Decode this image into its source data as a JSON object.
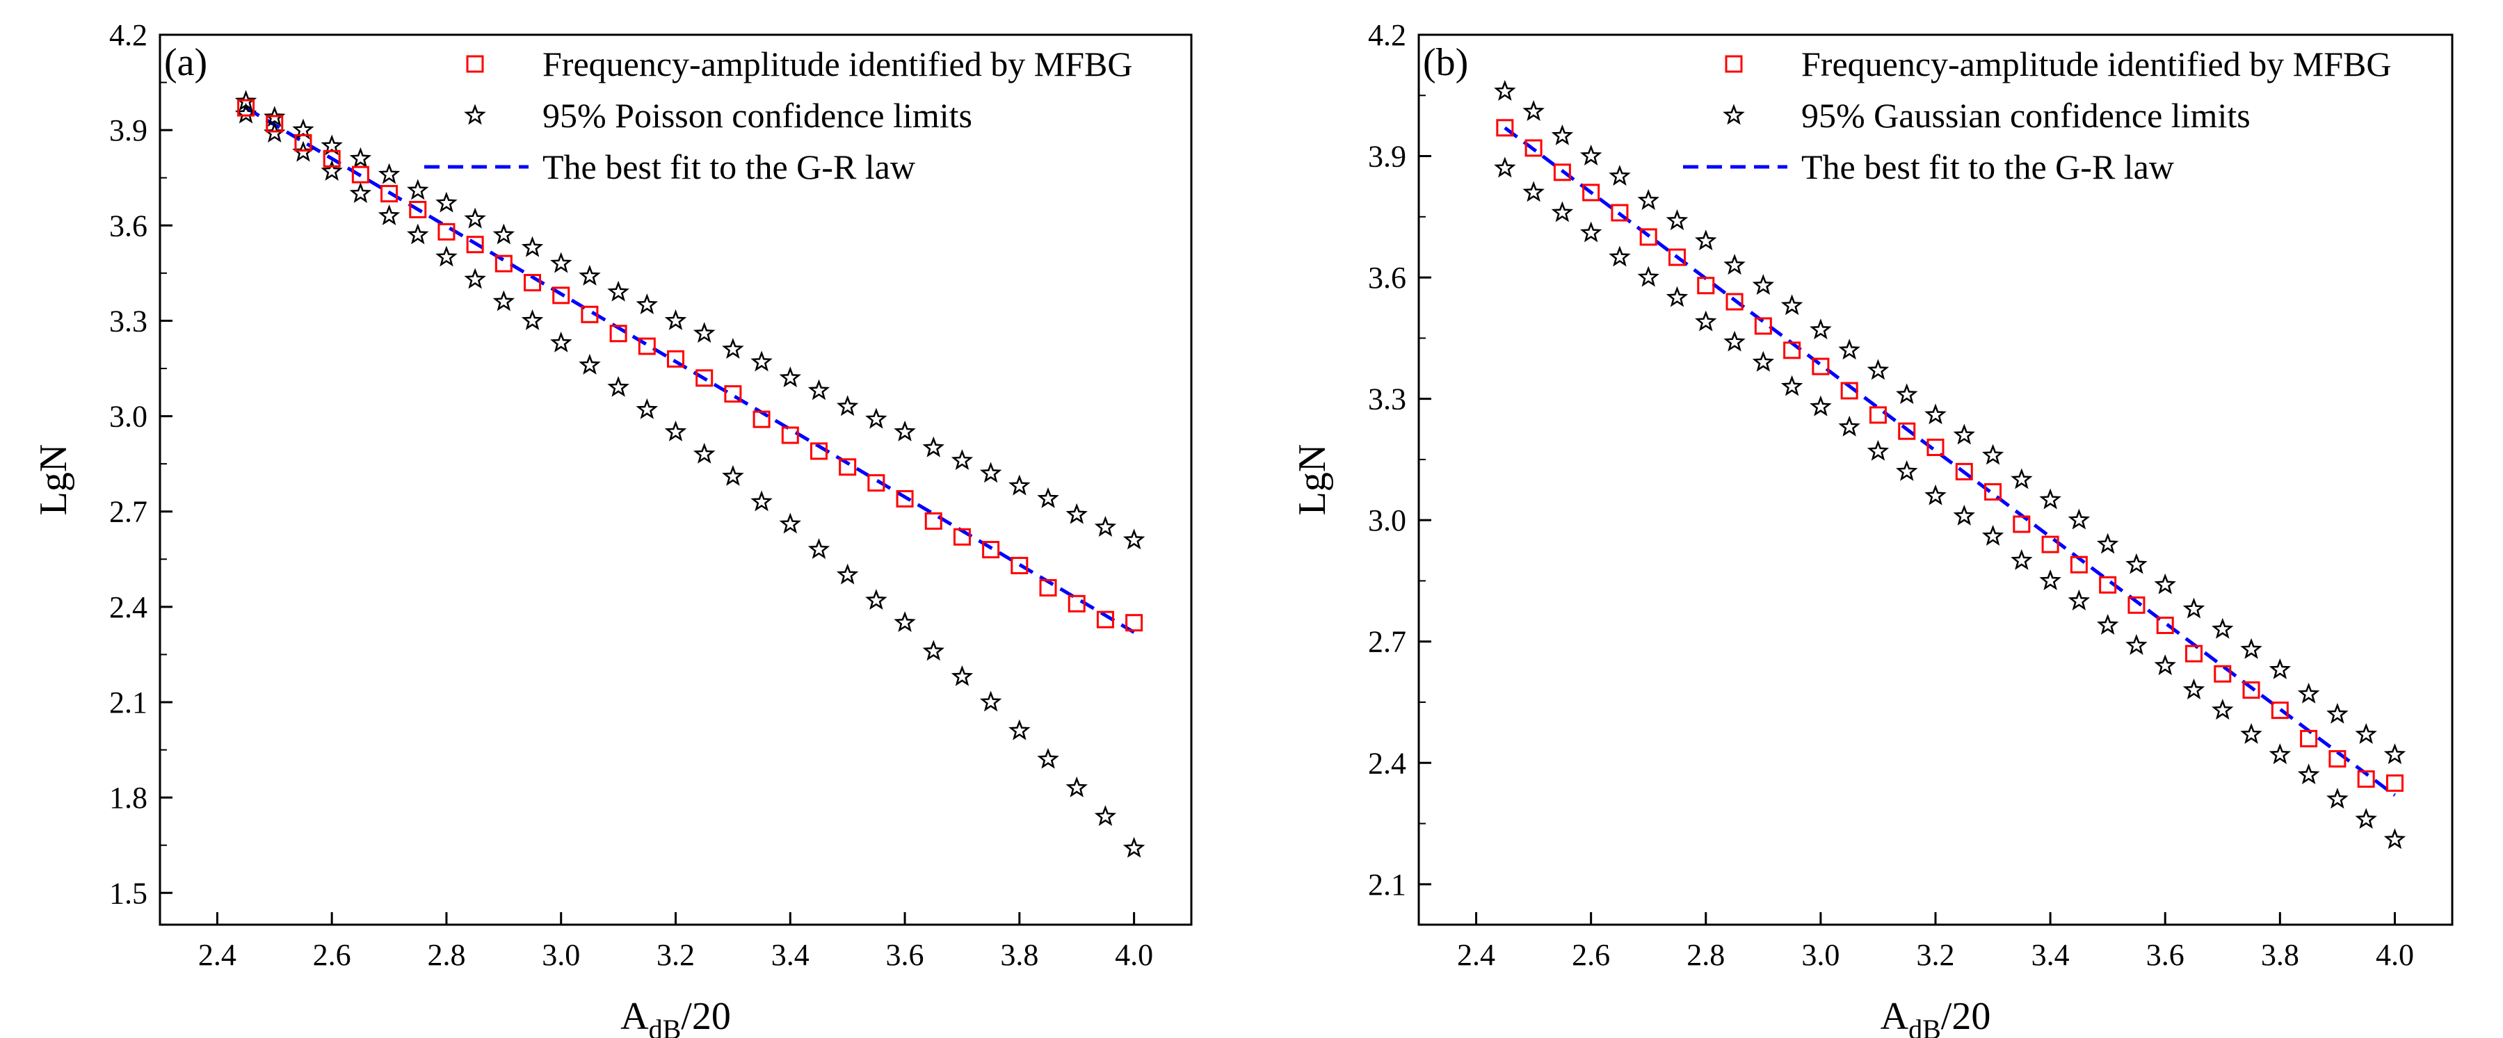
{
  "figure": {
    "panels": [
      "(a)",
      "(b)"
    ]
  },
  "chart_data": [
    {
      "type": "scatter",
      "panel_label": "(a)",
      "xlabel": {
        "main": "A",
        "sub": "dB",
        "tail": "/20"
      },
      "ylabel": "LgN",
      "xlim": [
        2.3,
        4.1
      ],
      "ylim": [
        1.4,
        4.2
      ],
      "xticks": [
        "2.4",
        "2.6",
        "2.8",
        "3.0",
        "3.2",
        "3.4",
        "3.6",
        "3.8",
        "4.0"
      ],
      "yticks": [
        "1.5",
        "1.8",
        "2.1",
        "2.4",
        "2.7",
        "3.0",
        "3.3",
        "3.6",
        "3.9",
        "4.2"
      ],
      "grid": false,
      "legend_position": "top-right",
      "x": [
        2.45,
        2.5,
        2.55,
        2.6,
        2.65,
        2.7,
        2.75,
        2.8,
        2.85,
        2.9,
        2.95,
        3.0,
        3.05,
        3.1,
        3.15,
        3.2,
        3.25,
        3.3,
        3.35,
        3.4,
        3.45,
        3.5,
        3.55,
        3.6,
        3.65,
        3.7,
        3.75,
        3.8,
        3.85,
        3.9,
        3.95,
        4.0
      ],
      "series": [
        {
          "name": "Frequency-amplitude identified by MFBG",
          "marker": "square",
          "color": "#ff0000",
          "values": [
            3.97,
            3.92,
            3.86,
            3.81,
            3.76,
            3.7,
            3.65,
            3.58,
            3.54,
            3.48,
            3.42,
            3.38,
            3.32,
            3.26,
            3.22,
            3.18,
            3.12,
            3.07,
            2.99,
            2.94,
            2.89,
            2.84,
            2.79,
            2.74,
            2.67,
            2.62,
            2.58,
            2.53,
            2.46,
            2.41,
            2.36,
            2.35
          ]
        },
        {
          "name": "95% Poisson confidence limits",
          "marker": "star",
          "color": "#000000",
          "values_upper": [
            3.99,
            3.94,
            3.9,
            3.85,
            3.81,
            3.76,
            3.71,
            3.67,
            3.62,
            3.57,
            3.53,
            3.48,
            3.44,
            3.39,
            3.35,
            3.3,
            3.26,
            3.21,
            3.17,
            3.12,
            3.08,
            3.03,
            2.99,
            2.95,
            2.9,
            2.86,
            2.82,
            2.78,
            2.74,
            2.69,
            2.65,
            2.61
          ],
          "values_lower": [
            3.95,
            3.89,
            3.83,
            3.77,
            3.7,
            3.63,
            3.57,
            3.5,
            3.43,
            3.36,
            3.3,
            3.23,
            3.16,
            3.09,
            3.02,
            2.95,
            2.88,
            2.81,
            2.73,
            2.66,
            2.58,
            2.5,
            2.42,
            2.35,
            2.26,
            2.18,
            2.1,
            2.01,
            1.92,
            1.83,
            1.74,
            1.64
          ]
        },
        {
          "name": "The best fit to the G-R law",
          "style": "dashed-line",
          "color": "#0000ff",
          "fit": [
            [
              2.45,
              3.97
            ],
            [
              4.0,
              2.32
            ]
          ]
        }
      ]
    },
    {
      "type": "scatter",
      "panel_label": "(b)",
      "xlabel": {
        "main": "A",
        "sub": "dB",
        "tail": "/20"
      },
      "ylabel": "LgN",
      "xlim": [
        2.3,
        4.1
      ],
      "ylim": [
        2.0,
        4.2
      ],
      "xticks": [
        "2.4",
        "2.6",
        "2.8",
        "3.0",
        "3.2",
        "3.4",
        "3.6",
        "3.8",
        "4.0"
      ],
      "yticks": [
        "2.1",
        "2.4",
        "2.7",
        "3.0",
        "3.3",
        "3.6",
        "3.9",
        "4.2"
      ],
      "grid": false,
      "legend_position": "top-right",
      "x": [
        2.45,
        2.5,
        2.55,
        2.6,
        2.65,
        2.7,
        2.75,
        2.8,
        2.85,
        2.9,
        2.95,
        3.0,
        3.05,
        3.1,
        3.15,
        3.2,
        3.25,
        3.3,
        3.35,
        3.4,
        3.45,
        3.5,
        3.55,
        3.6,
        3.65,
        3.7,
        3.75,
        3.8,
        3.85,
        3.9,
        3.95,
        4.0
      ],
      "series": [
        {
          "name": "Frequency-amplitude identified by MFBG",
          "marker": "square",
          "color": "#ff0000",
          "values": [
            3.97,
            3.92,
            3.86,
            3.81,
            3.76,
            3.7,
            3.65,
            3.58,
            3.54,
            3.48,
            3.42,
            3.38,
            3.32,
            3.26,
            3.22,
            3.18,
            3.12,
            3.07,
            2.99,
            2.94,
            2.89,
            2.84,
            2.79,
            2.74,
            2.67,
            2.62,
            2.58,
            2.53,
            2.46,
            2.41,
            2.36,
            2.35
          ]
        },
        {
          "name": "95% Gaussian confidence limits",
          "marker": "star",
          "color": "#000000",
          "values_upper": [
            4.06,
            4.01,
            3.95,
            3.9,
            3.85,
            3.79,
            3.74,
            3.69,
            3.63,
            3.58,
            3.53,
            3.47,
            3.42,
            3.37,
            3.31,
            3.26,
            3.21,
            3.16,
            3.1,
            3.05,
            3.0,
            2.94,
            2.89,
            2.84,
            2.78,
            2.73,
            2.68,
            2.63,
            2.57,
            2.52,
            2.47,
            2.42
          ],
          "values_lower": [
            3.87,
            3.81,
            3.76,
            3.71,
            3.65,
            3.6,
            3.55,
            3.49,
            3.44,
            3.39,
            3.33,
            3.28,
            3.23,
            3.17,
            3.12,
            3.06,
            3.01,
            2.96,
            2.9,
            2.85,
            2.8,
            2.74,
            2.69,
            2.64,
            2.58,
            2.53,
            2.47,
            2.42,
            2.37,
            2.31,
            2.26,
            2.21
          ]
        },
        {
          "name": "The best fit to the G-R law",
          "style": "dashed-line",
          "color": "#0000ff",
          "fit": [
            [
              2.45,
              3.97
            ],
            [
              4.0,
              2.32
            ]
          ]
        }
      ]
    }
  ]
}
